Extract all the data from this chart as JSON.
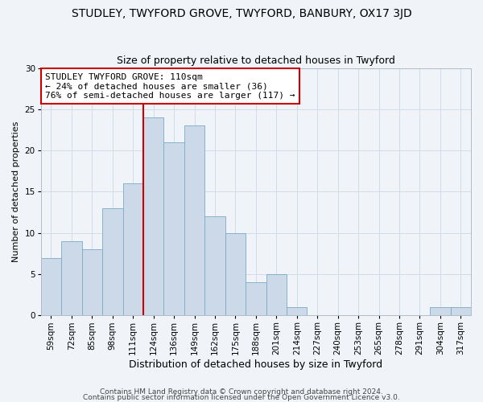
{
  "title": "STUDLEY, TWYFORD GROVE, TWYFORD, BANBURY, OX17 3JD",
  "subtitle": "Size of property relative to detached houses in Twyford",
  "xlabel": "Distribution of detached houses by size in Twyford",
  "ylabel": "Number of detached properties",
  "bar_color": "#ccd9e8",
  "bar_edge_color": "#7aaac8",
  "bin_labels": [
    "59sqm",
    "72sqm",
    "85sqm",
    "98sqm",
    "111sqm",
    "124sqm",
    "136sqm",
    "149sqm",
    "162sqm",
    "175sqm",
    "188sqm",
    "201sqm",
    "214sqm",
    "227sqm",
    "240sqm",
    "253sqm",
    "265sqm",
    "278sqm",
    "291sqm",
    "304sqm",
    "317sqm"
  ],
  "counts": [
    7,
    9,
    8,
    13,
    16,
    24,
    21,
    23,
    12,
    10,
    4,
    5,
    1,
    0,
    0,
    0,
    0,
    0,
    0,
    1,
    1
  ],
  "vline_index": 4,
  "vline_color": "#cc0000",
  "annotation_line1": "STUDLEY TWYFORD GROVE: 110sqm",
  "annotation_line2": "← 24% of detached houses are smaller (36)",
  "annotation_line3": "76% of semi-detached houses are larger (117) →",
  "annotation_box_color": "#ffffff",
  "annotation_box_edge": "#cc0000",
  "ylim": [
    0,
    30
  ],
  "yticks": [
    0,
    5,
    10,
    15,
    20,
    25,
    30
  ],
  "footer_line1": "Contains HM Land Registry data © Crown copyright and database right 2024.",
  "footer_line2": "Contains public sector information licensed under the Open Government Licence v3.0.",
  "title_fontsize": 10,
  "subtitle_fontsize": 9,
  "xlabel_fontsize": 9,
  "ylabel_fontsize": 8,
  "tick_fontsize": 7.5,
  "annotation_fontsize": 8,
  "footer_fontsize": 6.5,
  "grid_color": "#d0dce8",
  "background_color": "#f0f4f8"
}
